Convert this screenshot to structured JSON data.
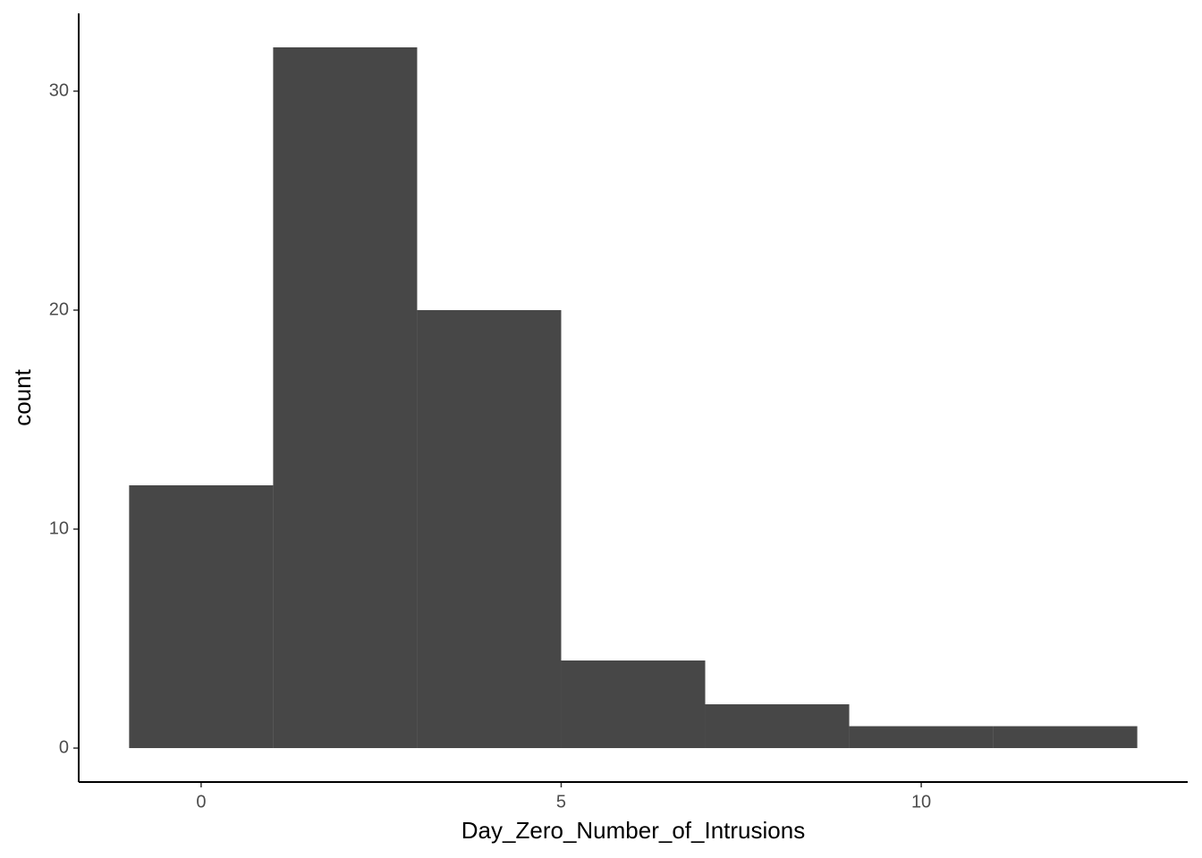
{
  "chart_data": {
    "type": "histogram",
    "x_label": "Day_Zero_Number_of_Intrusions",
    "y_label": "count",
    "bins": [
      -1,
      1,
      3,
      5,
      7,
      9,
      11,
      13
    ],
    "values": [
      12,
      32,
      20,
      4,
      2,
      1,
      1
    ],
    "color": "#474747",
    "xlim": [
      -1.7,
      13.7
    ],
    "xticks": [
      0,
      5,
      10
    ],
    "ylim": [
      -1.55,
      33.55
    ],
    "yticks": [
      0,
      10,
      20,
      30
    ],
    "grid": false
  }
}
